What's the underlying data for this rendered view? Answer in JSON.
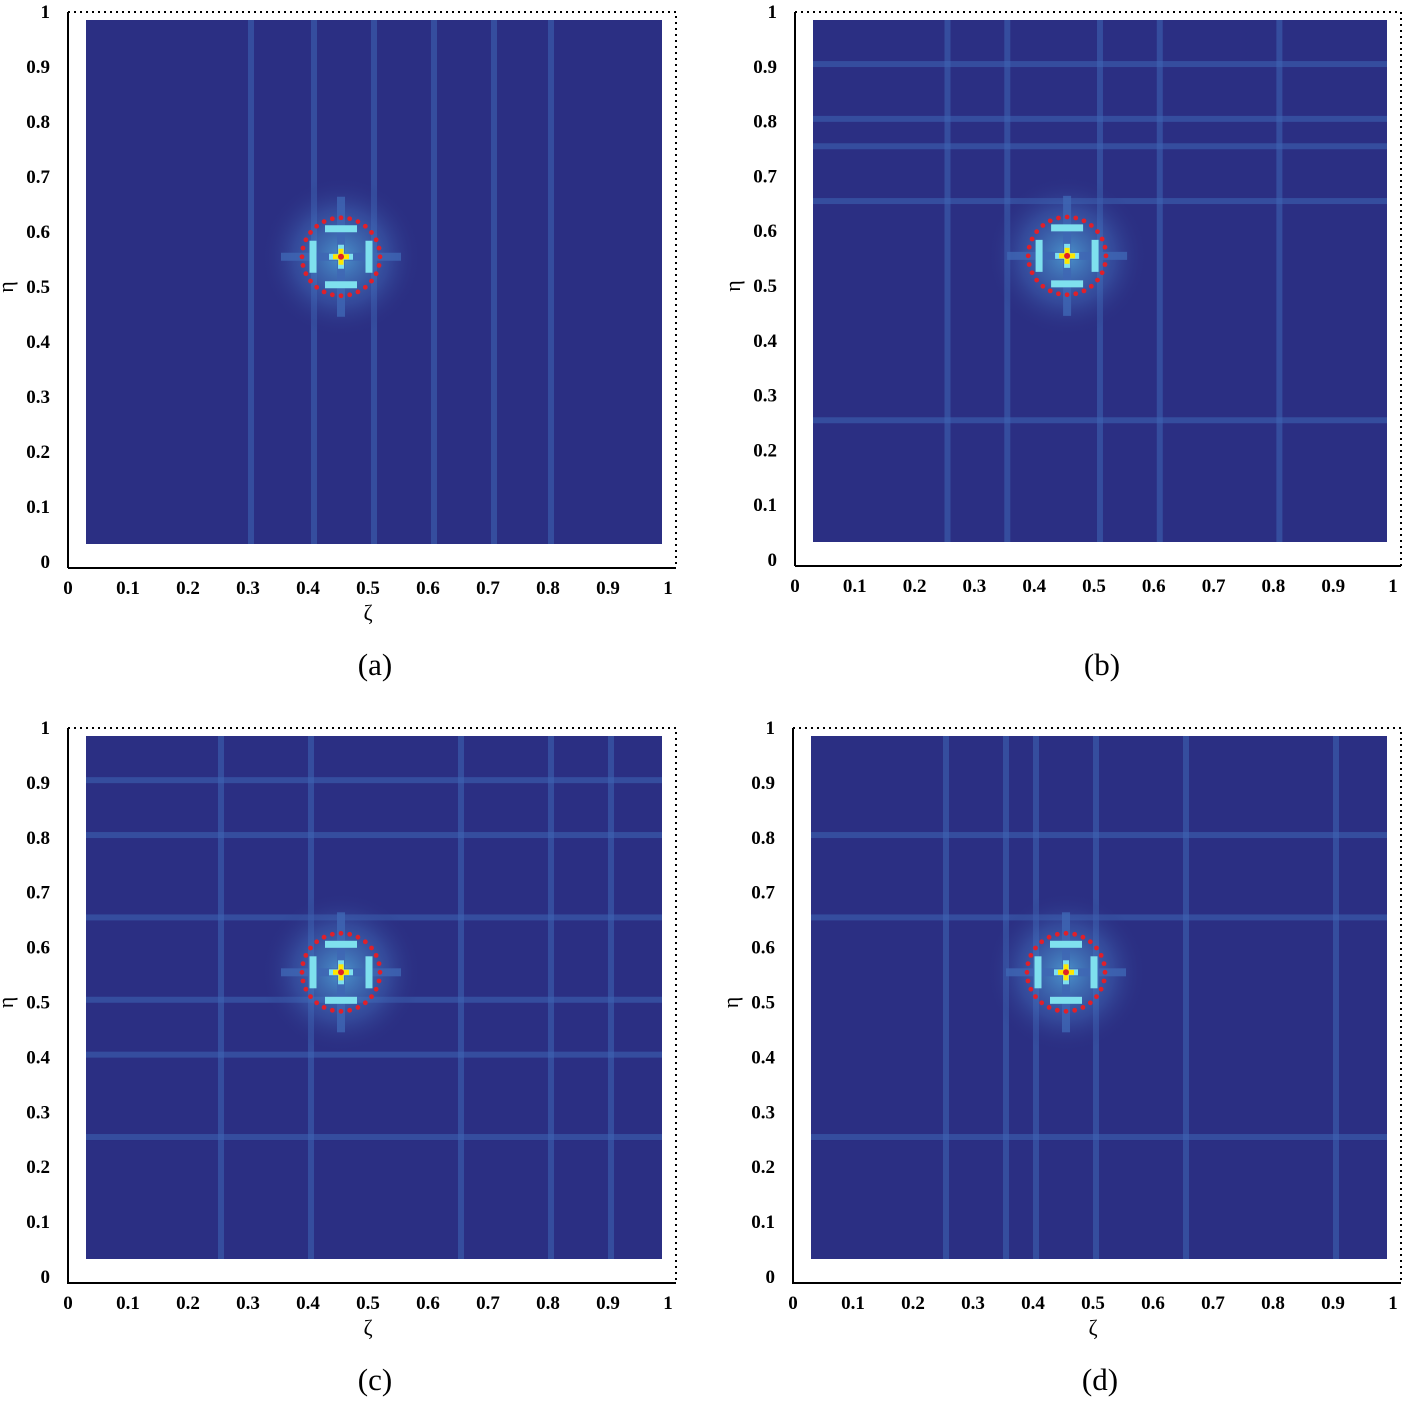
{
  "colors": {
    "background_field": "#2b2f83",
    "stripe": "#3e66b4",
    "ring_glow": "#4fa4d8",
    "bright": "#7fe0ee",
    "yellow": "#ffe600",
    "red_marker": "#e0202a",
    "frame": "#000000"
  },
  "chart_data": [
    {
      "type": "heatmap",
      "caption": "(a)",
      "xlabel": "ζ",
      "ylabel": "η",
      "xlim": [
        0,
        1
      ],
      "ylim": [
        0,
        1
      ],
      "xticks": [
        "0",
        "0.1",
        "0.2",
        "0.3",
        "0.4",
        "0.5",
        "0.6",
        "0.7",
        "0.8",
        "0.9",
        "1"
      ],
      "yticks": [
        "0",
        "0.1",
        "0.2",
        "0.3",
        "0.4",
        "0.5",
        "0.6",
        "0.7",
        "0.8",
        "0.9",
        "1"
      ],
      "peak": {
        "x": 0.455,
        "y": 0.555
      },
      "circle": {
        "cx": 0.455,
        "cy": 0.555,
        "r": 0.065
      },
      "vertical_stripes": [
        0.305,
        0.41,
        0.51,
        0.61,
        0.71,
        0.805
      ],
      "horizontal_stripes": []
    },
    {
      "type": "heatmap",
      "caption": "(b)",
      "xlabel": "",
      "ylabel": "η",
      "xlim": [
        0,
        1
      ],
      "ylim": [
        0,
        1
      ],
      "xticks": [
        "0",
        "0.1",
        "0.2",
        "0.3",
        "0.4",
        "0.5",
        "0.6",
        "0.7",
        "0.8",
        "0.9",
        "1"
      ],
      "yticks": [
        "0",
        "0.1",
        "0.2",
        "0.3",
        "0.4",
        "0.5",
        "0.6",
        "0.7",
        "0.8",
        "0.9",
        "1"
      ],
      "peak": {
        "x": 0.455,
        "y": 0.555
      },
      "circle": {
        "cx": 0.455,
        "cy": 0.555,
        "r": 0.065
      },
      "vertical_stripes": [
        0.255,
        0.355,
        0.51,
        0.61,
        0.81
      ],
      "horizontal_stripes": [
        0.905,
        0.805,
        0.755,
        0.655,
        0.255
      ]
    },
    {
      "type": "heatmap",
      "caption": "(c)",
      "xlabel": "ζ",
      "ylabel": "η",
      "xlim": [
        0,
        1
      ],
      "ylim": [
        0,
        1
      ],
      "xticks": [
        "0",
        "0.1",
        "0.2",
        "0.3",
        "0.4",
        "0.5",
        "0.6",
        "0.7",
        "0.8",
        "0.9",
        "1"
      ],
      "yticks": [
        "0",
        "0.1",
        "0.2",
        "0.3",
        "0.4",
        "0.5",
        "0.6",
        "0.7",
        "0.8",
        "0.9",
        "1"
      ],
      "peak": {
        "x": 0.455,
        "y": 0.555
      },
      "circle": {
        "cx": 0.455,
        "cy": 0.555,
        "r": 0.065
      },
      "vertical_stripes": [
        0.255,
        0.405,
        0.655,
        0.805,
        0.905
      ],
      "horizontal_stripes": [
        0.905,
        0.805,
        0.655,
        0.505,
        0.405,
        0.255
      ]
    },
    {
      "type": "heatmap",
      "caption": "(d)",
      "xlabel": "ζ",
      "ylabel": "η",
      "xlim": [
        0,
        1
      ],
      "ylim": [
        0,
        1
      ],
      "xticks": [
        "0",
        "0.1",
        "0.2",
        "0.3",
        "0.4",
        "0.5",
        "0.6",
        "0.7",
        "0.8",
        "0.9",
        "1"
      ],
      "yticks": [
        "0",
        "0.1",
        "0.2",
        "0.3",
        "0.4",
        "0.5",
        "0.6",
        "0.7",
        "0.8",
        "0.9",
        "1"
      ],
      "peak": {
        "x": 0.455,
        "y": 0.555
      },
      "circle": {
        "cx": 0.455,
        "cy": 0.555,
        "r": 0.065
      },
      "vertical_stripes": [
        0.255,
        0.355,
        0.405,
        0.505,
        0.655,
        0.905
      ],
      "horizontal_stripes": [
        0.805,
        0.655,
        0.255
      ]
    }
  ]
}
